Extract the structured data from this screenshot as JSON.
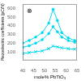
{
  "chart_data": {
    "type": "line",
    "xlabel": "mole% PbTiO₃",
    "ylabel": "Piezoelectric coefficients (pC/N)",
    "annotations": [
      "⊗"
    ],
    "x": [
      40,
      43,
      46,
      49,
      52,
      54,
      56,
      58,
      61,
      64
    ],
    "series": [
      {
        "color": "#00d8ee",
        "marker": "circle",
        "line_style": "solid",
        "values": [
          200,
          230,
          270,
          320,
          430,
          590,
          460,
          320,
          260,
          230
        ]
      },
      {
        "color": "#00d8ee",
        "marker": "circle",
        "line_style": "solid",
        "values": [
          150,
          170,
          200,
          240,
          310,
          390,
          330,
          270,
          230,
          210
        ]
      },
      {
        "color": "#00d8ee",
        "marker": "x",
        "line_style": "solid",
        "values": [
          80,
          90,
          100,
          110,
          135,
          165,
          155,
          145,
          135,
          130
        ]
      }
    ],
    "xlim": [
      40,
      65
    ],
    "ylim": [
      0,
      650
    ],
    "xticks": [
      40,
      45,
      50,
      55,
      60,
      65
    ],
    "yticks": [
      100,
      200,
      300,
      400,
      500,
      600
    ],
    "grid": false
  }
}
